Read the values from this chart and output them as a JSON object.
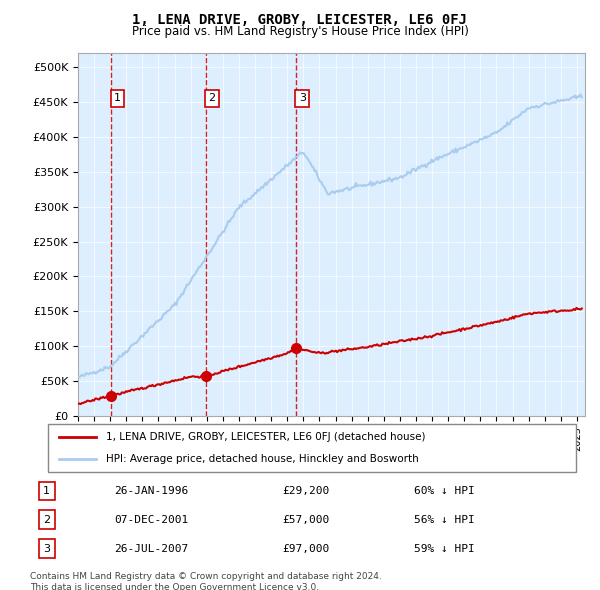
{
  "title": "1, LENA DRIVE, GROBY, LEICESTER, LE6 0FJ",
  "subtitle": "Price paid vs. HM Land Registry's House Price Index (HPI)",
  "ylabel_ticks": [
    "£0",
    "£50K",
    "£100K",
    "£150K",
    "£200K",
    "£250K",
    "£300K",
    "£350K",
    "£400K",
    "£450K",
    "£500K"
  ],
  "ytick_values": [
    0,
    50000,
    100000,
    150000,
    200000,
    250000,
    300000,
    350000,
    400000,
    450000,
    500000
  ],
  "ylim": [
    0,
    520000
  ],
  "xlim_start": 1994.0,
  "xlim_end": 2025.5,
  "hpi_color": "#aaccee",
  "price_color": "#cc0000",
  "sale_marker_color": "#cc0000",
  "dashed_line_color": "#cc0000",
  "background_color": "#ddeeff",
  "sales": [
    {
      "label": "1",
      "date_num": 1996.08,
      "price": 29200,
      "text": "26-JAN-1996",
      "pct": "60% ↓ HPI"
    },
    {
      "label": "2",
      "date_num": 2001.93,
      "price": 57000,
      "text": "07-DEC-2001",
      "pct": "56% ↓ HPI"
    },
    {
      "label": "3",
      "date_num": 2007.57,
      "price": 97000,
      "text": "26-JUL-2007",
      "pct": "59% ↓ HPI"
    }
  ],
  "legend_label_red": "1, LENA DRIVE, GROBY, LEICESTER, LE6 0FJ (detached house)",
  "legend_label_blue": "HPI: Average price, detached house, Hinckley and Bosworth",
  "footer_line1": "Contains HM Land Registry data © Crown copyright and database right 2024.",
  "footer_line2": "This data is licensed under the Open Government Licence v3.0."
}
